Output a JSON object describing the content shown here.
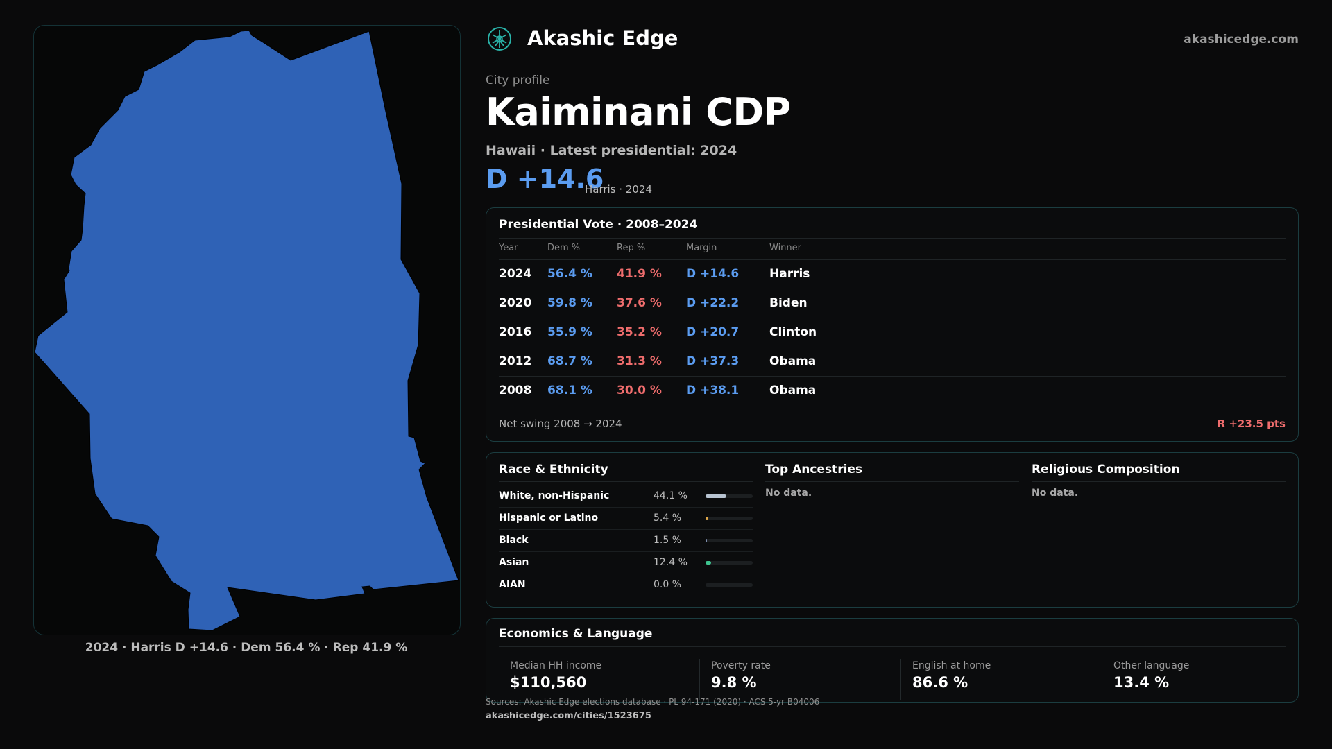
{
  "map_caption": "2024 · Harris D +14.6 · Dem 56.4 % · Rep 41.9 %",
  "colors": {
    "dem": "#5b9cf0",
    "rep": "#ef6d6d",
    "map_fill": "#2f62b6",
    "accent": "#2ab3a9"
  },
  "header": {
    "brand": "Akashic Edge",
    "domain": "akashicedge.com",
    "logo_icon": "akashic-edge-logo-icon"
  },
  "profile": {
    "eyebrow": "City profile",
    "title": "Kaiminani CDP",
    "subline": "Hawaii · Latest presidential: 2024",
    "margin": "D +14.6",
    "margin_note": "Harris · 2024"
  },
  "presidential": {
    "title": "Presidential Vote · 2008–2024",
    "columns": [
      "Year",
      "Dem %",
      "Rep %",
      "Margin",
      "Winner"
    ],
    "rows": [
      {
        "year": "2024",
        "dem": "56.4 %",
        "rep": "41.9 %",
        "margin": "D +14.6",
        "winner": "Harris"
      },
      {
        "year": "2020",
        "dem": "59.8 %",
        "rep": "37.6 %",
        "margin": "D +22.2",
        "winner": "Biden"
      },
      {
        "year": "2016",
        "dem": "55.9 %",
        "rep": "35.2 %",
        "margin": "D +20.7",
        "winner": "Clinton"
      },
      {
        "year": "2012",
        "dem": "68.7 %",
        "rep": "31.3 %",
        "margin": "D +37.3",
        "winner": "Obama"
      },
      {
        "year": "2008",
        "dem": "68.1 %",
        "rep": "30.0 %",
        "margin": "D +38.1",
        "winner": "Obama"
      }
    ],
    "swing_label": "Net swing 2008 → 2024",
    "swing_value": "R +23.5 pts"
  },
  "race": {
    "title": "Race & Ethnicity",
    "rows": [
      {
        "label": "White, non-Hispanic",
        "value": "44.1 %",
        "fraction": 0.441,
        "color": "#b8c4d2"
      },
      {
        "label": "Hispanic or Latino",
        "value": "5.4 %",
        "fraction": 0.054,
        "color": "#e0a84a"
      },
      {
        "label": "Black",
        "value": "1.5 %",
        "fraction": 0.015,
        "color": "#7f8fb0"
      },
      {
        "label": "Asian",
        "value": "12.4 %",
        "fraction": 0.124,
        "color": "#3ec48f"
      },
      {
        "label": "AIAN",
        "value": "0.0 %",
        "fraction": 0.0,
        "color": "#c07a4a"
      }
    ]
  },
  "ancestries": {
    "title": "Top Ancestries",
    "empty": "No data."
  },
  "religion": {
    "title": "Religious Composition",
    "empty": "No data."
  },
  "economics": {
    "title": "Economics & Language",
    "stats": [
      {
        "label": "Median HH income",
        "value": "$110,560"
      },
      {
        "label": "Poverty rate",
        "value": "9.8 %"
      },
      {
        "label": "English at home",
        "value": "86.6 %"
      },
      {
        "label": "Other language",
        "value": "13.4 %"
      }
    ]
  },
  "footer": {
    "sources": "Sources: Akashic Edge elections database · PL 94-171 (2020) · ACS 5-yr B04006",
    "url": "akashicedge.com/cities/1523675"
  }
}
